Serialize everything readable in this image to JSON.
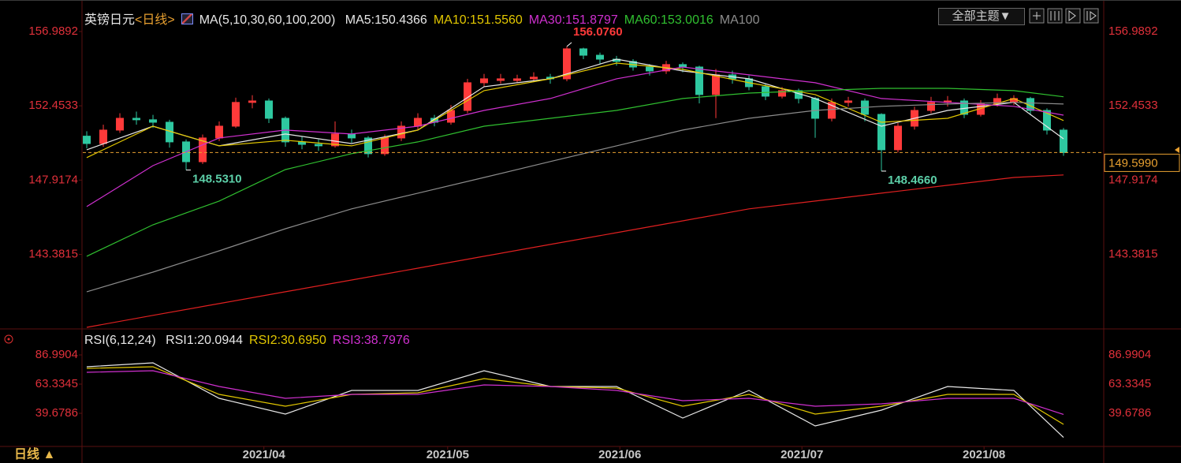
{
  "chart_data": [
    {
      "type": "candlestick",
      "title": "英镑日元",
      "period": "<日线>",
      "indicator_label": "MA(5,10,30,60,100,200)",
      "xlim": [
        -0.24,
        61.43
      ],
      "ylim": [
        138.93,
        158.43
      ],
      "yticks": [
        143.3815,
        147.9174,
        152.4533,
        156.9892
      ],
      "up_color": "#ff3a3a",
      "down_color": "#2ec8a0",
      "grid": false,
      "candles": [
        [
          150.6,
          150.9,
          149.85,
          150.15
        ],
        [
          150.15,
          151.3,
          149.95,
          150.97
        ],
        [
          150.97,
          152.0,
          150.8,
          151.69
        ],
        [
          151.69,
          152.1,
          151.3,
          151.6
        ],
        [
          151.6,
          151.9,
          151.1,
          151.45
        ],
        [
          151.45,
          151.6,
          149.9,
          150.25
        ],
        [
          150.25,
          150.4,
          148.531,
          149.04
        ],
        [
          149.04,
          150.7,
          148.9,
          150.49
        ],
        [
          150.49,
          151.5,
          150.3,
          151.21
        ],
        [
          151.21,
          152.95,
          151.1,
          152.66
        ],
        [
          152.66,
          153.1,
          152.3,
          152.75
        ],
        [
          152.75,
          152.9,
          151.4,
          151.69
        ],
        [
          151.69,
          151.8,
          149.95,
          150.25
        ],
        [
          150.25,
          150.6,
          149.8,
          150.1
        ],
        [
          150.1,
          150.4,
          149.7,
          150.01
        ],
        [
          150.01,
          151.5,
          149.9,
          150.73
        ],
        [
          150.73,
          151.0,
          150.2,
          150.49
        ],
        [
          150.49,
          150.6,
          149.3,
          149.53
        ],
        [
          149.53,
          150.7,
          149.4,
          150.49
        ],
        [
          150.49,
          151.5,
          150.3,
          151.21
        ],
        [
          151.21,
          152.0,
          151.0,
          151.69
        ],
        [
          151.69,
          151.9,
          151.2,
          151.45
        ],
        [
          151.45,
          152.5,
          151.3,
          152.17
        ],
        [
          152.17,
          154.1,
          152.0,
          153.86
        ],
        [
          153.86,
          154.4,
          153.6,
          154.1
        ],
        [
          154.0,
          154.4,
          153.8,
          154.1
        ],
        [
          154.0,
          154.35,
          153.85,
          154.1
        ],
        [
          154.1,
          154.5,
          153.9,
          154.2
        ],
        [
          154.2,
          154.4,
          153.8,
          154.1
        ],
        [
          154.1,
          156.076,
          153.95,
          155.93
        ],
        [
          155.93,
          156.0,
          155.3,
          155.54
        ],
        [
          155.54,
          155.7,
          155.0,
          155.3
        ],
        [
          155.3,
          155.5,
          154.9,
          155.16
        ],
        [
          155.16,
          155.3,
          154.6,
          154.82
        ],
        [
          154.82,
          155.0,
          154.3,
          154.58
        ],
        [
          154.58,
          155.2,
          154.4,
          154.97
        ],
        [
          154.97,
          155.1,
          154.5,
          154.82
        ],
        [
          154.82,
          154.9,
          152.6,
          153.14
        ],
        [
          153.14,
          154.7,
          151.7,
          154.34
        ],
        [
          154.34,
          154.6,
          153.8,
          154.1
        ],
        [
          154.1,
          154.3,
          153.4,
          153.62
        ],
        [
          153.62,
          153.8,
          152.8,
          153.04
        ],
        [
          153.04,
          153.6,
          152.9,
          153.38
        ],
        [
          153.38,
          153.5,
          152.6,
          152.9
        ],
        [
          152.9,
          153.0,
          150.5,
          151.69
        ],
        [
          151.69,
          152.9,
          151.5,
          152.66
        ],
        [
          152.66,
          153.0,
          152.4,
          152.75
        ],
        [
          152.75,
          152.9,
          151.5,
          151.93
        ],
        [
          151.93,
          152.0,
          148.466,
          149.77
        ],
        [
          149.77,
          151.4,
          149.6,
          151.21
        ],
        [
          151.21,
          152.4,
          151.0,
          152.17
        ],
        [
          152.17,
          153.0,
          152.0,
          152.66
        ],
        [
          152.66,
          153.05,
          152.4,
          152.75
        ],
        [
          152.75,
          152.9,
          151.7,
          151.93
        ],
        [
          151.93,
          152.8,
          151.8,
          152.56
        ],
        [
          152.56,
          153.2,
          152.4,
          152.9
        ],
        [
          152.7,
          153.1,
          152.5,
          152.9
        ],
        [
          152.9,
          153.0,
          151.9,
          152.17
        ],
        [
          152.17,
          152.3,
          150.7,
          150.97
        ],
        [
          150.97,
          151.1,
          149.4,
          149.6
        ]
      ],
      "x": [
        0,
        4,
        8,
        12,
        16,
        20,
        24,
        28,
        32,
        36,
        40,
        44,
        48,
        52,
        56,
        59
      ],
      "series": [
        {
          "name": "MA5:150.4366",
          "color": "#e8e8e8",
          "values": [
            149.77,
            151.21,
            150.01,
            150.73,
            150.15,
            150.97,
            153.62,
            154.1,
            155.3,
            154.58,
            154.1,
            152.9,
            151.21,
            152.17,
            152.66,
            150.4366
          ]
        },
        {
          "name": "MA10:151.5560",
          "color": "#e3c800",
          "values": [
            149.29,
            151.21,
            150.01,
            150.35,
            150.01,
            150.97,
            153.38,
            154.1,
            155.06,
            154.68,
            153.86,
            153.14,
            151.45,
            151.69,
            152.9,
            151.556
          ]
        },
        {
          "name": "MA30:151.8797",
          "color": "#d030d0",
          "values": [
            146.3,
            148.8,
            150.49,
            150.97,
            150.73,
            151.21,
            152.17,
            152.9,
            154.1,
            154.82,
            154.34,
            153.86,
            152.9,
            152.66,
            152.42,
            151.8797
          ]
        },
        {
          "name": "MA60:153.0016",
          "color": "#30c030",
          "values": [
            143.27,
            145.19,
            146.64,
            148.56,
            149.53,
            150.25,
            151.21,
            151.69,
            152.17,
            152.9,
            153.23,
            153.38,
            153.52,
            153.52,
            153.38,
            153.0016
          ]
        },
        {
          "name": "MA100",
          "color": "#8c8c8c",
          "values": [
            141.1,
            142.3,
            143.6,
            144.95,
            146.16,
            147.12,
            148.08,
            149.05,
            150.01,
            150.97,
            151.69,
            152.17,
            152.42,
            152.56,
            152.66,
            152.56
          ]
        },
        {
          "name": null,
          "color": "#e02020",
          "values": [
            138.93,
            139.66,
            140.38,
            141.1,
            141.82,
            142.54,
            143.27,
            143.99,
            144.71,
            145.43,
            146.16,
            146.64,
            147.12,
            147.6,
            148.08,
            148.23
          ]
        }
      ],
      "annotations": [
        {
          "x": 29,
          "value": 156.076,
          "label": "156.0760",
          "color": "#ff3a3a"
        },
        {
          "x": 6,
          "value": 148.531,
          "label": "148.5310",
          "color": "#5ccfa8"
        },
        {
          "x": 48,
          "value": 148.466,
          "label": "148.4660",
          "color": "#5ccfa8"
        }
      ],
      "last_price": {
        "value": 149.599,
        "label": "149.5990"
      }
    },
    {
      "type": "line",
      "indicator_label": "RSI(6,12,24)",
      "xlim": [
        -0.24,
        61.43
      ],
      "ylim": [
        13.46,
        106.17
      ],
      "yticks": [
        39.6786,
        63.3345,
        86.9904
      ],
      "grid": false,
      "xticks": [
        {
          "value": 10.7,
          "label": "2021/04"
        },
        {
          "value": 21.8,
          "label": "2021/05"
        },
        {
          "value": 32.2,
          "label": "2021/06"
        },
        {
          "value": 43.2,
          "label": "2021/07"
        },
        {
          "value": 54.2,
          "label": "2021/08"
        }
      ],
      "x": [
        0,
        4,
        8,
        12,
        16,
        20,
        24,
        28,
        32,
        36,
        40,
        44,
        48,
        52,
        56,
        59
      ],
      "series": [
        {
          "name": "RSI1:20.0944",
          "color": "#e8e8e8",
          "values": [
            77.4,
            80.6,
            51.82,
            39.03,
            58.22,
            58.22,
            74.2,
            61.41,
            61.41,
            35.84,
            58.22,
            29.44,
            42.23,
            61.41,
            58.22,
            20.0944
          ]
        },
        {
          "name": "RSI2:30.6950",
          "color": "#e3c800",
          "values": [
            76.12,
            77.4,
            55.02,
            45.43,
            55.02,
            56.3,
            67.81,
            61.41,
            60.14,
            45.43,
            55.02,
            39.03,
            45.43,
            55.02,
            55.02,
            30.695
          ]
        },
        {
          "name": "RSI3:38.7976",
          "color": "#d030d0",
          "values": [
            72.92,
            74.2,
            61.41,
            51.82,
            55.02,
            55.02,
            62.69,
            61.41,
            58.22,
            49.9,
            51.82,
            45.43,
            47.35,
            51.82,
            51.82,
            38.7976
          ]
        }
      ]
    }
  ],
  "toolbar": {
    "theme_button": "全部主题▼"
  },
  "footer": {
    "period_button": "日线 ▲"
  }
}
